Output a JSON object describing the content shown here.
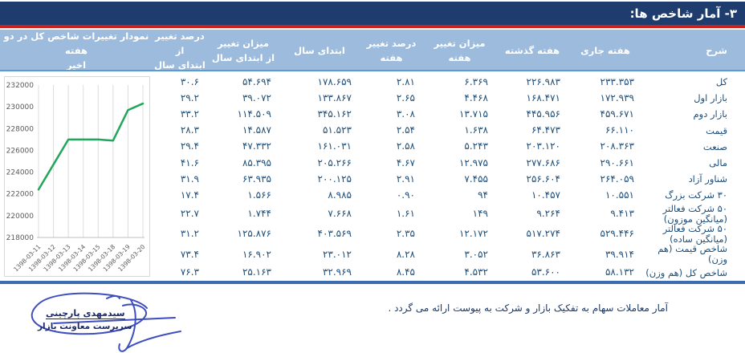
{
  "page_title": "۳- آمار شاخص ها:",
  "table": {
    "columns": [
      {
        "key": "sharh",
        "label": "شرح"
      },
      {
        "key": "current-week",
        "label": "هفته جاری"
      },
      {
        "key": "previous-week",
        "label": "هفته گذشته"
      },
      {
        "key": "week-change",
        "label": "میزان تغییر هفته"
      },
      {
        "key": "week-change-pct",
        "label": "درصد تغییر هفته"
      },
      {
        "key": "year-start",
        "label": "ابتدای سال"
      },
      {
        "key": "ytd-change",
        "label": "میزان تغییر\nاز ابتدای سال"
      },
      {
        "key": "ytd-change-pct",
        "label": "درصد تغییر از\nابتدای سال"
      },
      {
        "key": "chart",
        "label": "نمودار تغییرات شاخص کل در دو هفته\nاخیر"
      }
    ],
    "rows": [
      [
        "کل",
        "۲۳۳.۳۵۳",
        "۲۲۶.۹۸۳",
        "۶.۳۶۹",
        "۲.۸۱",
        "۱۷۸.۶۵۹",
        "۵۴.۶۹۴",
        "۳۰.۶"
      ],
      [
        "بازار اول",
        "۱۷۲.۹۳۹",
        "۱۶۸.۴۷۱",
        "۴.۴۶۸",
        "۲.۶۵",
        "۱۳۳.۸۶۷",
        "۳۹.۰۷۲",
        "۲۹.۲"
      ],
      [
        "بازار دوم",
        "۴۵۹.۶۷۱",
        "۴۴۵.۹۵۶",
        "۱۳.۷۱۵",
        "۳.۰۸",
        "۳۴۵.۱۶۲",
        "۱۱۴.۵۰۹",
        "۳۳.۲"
      ],
      [
        "قیمت",
        "۶۶.۱۱۰",
        "۶۴.۴۷۳",
        "۱.۶۳۸",
        "۲.۵۴",
        "۵۱.۵۲۳",
        "۱۴.۵۸۷",
        "۲۸.۳"
      ],
      [
        "صنعت",
        "۲۰۸.۳۶۳",
        "۲۰۳.۱۲۰",
        "۵.۲۴۳",
        "۲.۵۸",
        "۱۶۱.۰۳۱",
        "۴۷.۳۳۲",
        "۲۹.۴"
      ],
      [
        "مالی",
        "۲۹۰.۶۶۱",
        "۲۷۷.۶۸۶",
        "۱۲.۹۷۵",
        "۴.۶۷",
        "۲۰۵.۲۶۶",
        "۸۵.۳۹۵",
        "۴۱.۶"
      ],
      [
        "شناور آزاد",
        "۲۶۴.۰۵۹",
        "۲۵۶.۶۰۴",
        "۷.۴۵۵",
        "۲.۹۱",
        "۲۰۰.۱۲۵",
        "۶۳.۹۳۵",
        "۳۱.۹"
      ],
      [
        "۳۰ شرکت بزرگ",
        "۱۰.۵۵۱",
        "۱۰.۴۵۷",
        "۹۴",
        "۰.۹۰",
        "۸.۹۸۵",
        "۱.۵۶۶",
        "۱۷.۴"
      ],
      [
        "۵۰ شرکت فعالتر (میانگین موزون)",
        "۹.۴۱۳",
        "۹.۲۶۴",
        "۱۴۹",
        "۱.۶۱",
        "۷.۶۶۸",
        "۱.۷۴۴",
        "۲۲.۷"
      ],
      [
        "۵۰ شرکت فعالتر (میانگین ساده)",
        "۵۲۹.۴۴۶",
        "۵۱۷.۲۷۴",
        "۱۲.۱۷۲",
        "۲.۳۵",
        "۴۰۳.۵۶۹",
        "۱۲۵.۸۷۶",
        "۳۱.۲"
      ],
      [
        "شاخص قیمت (هم وزن)",
        "۳۹.۹۱۴",
        "۳۶.۸۶۳",
        "۳.۰۵۲",
        "۸.۲۸",
        "۲۳.۰۱۲",
        "۱۶.۹۰۲",
        "۷۳.۴"
      ],
      [
        "شاخص کل (هم وزن)",
        "۵۸.۱۳۲",
        "۵۳.۶۰۰",
        "۴.۵۳۲",
        "۸.۴۵",
        "۳۲.۹۶۹",
        "۲۵.۱۶۳",
        "۷۶.۳"
      ]
    ]
  },
  "chart_data": {
    "type": "line",
    "title": "نمودار تغییرات شاخص کل در دو هفته اخیر",
    "x": [
      "1398-03-11",
      "1398-03-12",
      "1398-03-13",
      "1398-03-14",
      "1398-03-15",
      "1398-03-18",
      "1398-03-19",
      "1398-03-20"
    ],
    "series": [
      {
        "name": "شاخص کل",
        "values": [
          222400,
          224700,
          227000,
          227000,
          227000,
          226900,
          229700,
          230300
        ]
      }
    ],
    "ylim": [
      218000,
      232000
    ],
    "ytick_step": 2000,
    "grid": "vertical",
    "legend": "none",
    "line_color": "#21a65b"
  },
  "signature": {
    "name": "سیدمهدی پارچینی",
    "title": "سرپرست معاونت بازار"
  },
  "footnote": "آمار معاملات سهام به تفکیک بازار و شرکت به پیوست ارائه می گردد .",
  "colors": {
    "title_bar": "#1e3c6e",
    "red_rule": "#c9211e",
    "table_header_bg": "#9dbcdd",
    "body_text": "#1f4e79",
    "bottom_rule": "#3c6db0",
    "chart_line": "#21a65b"
  }
}
